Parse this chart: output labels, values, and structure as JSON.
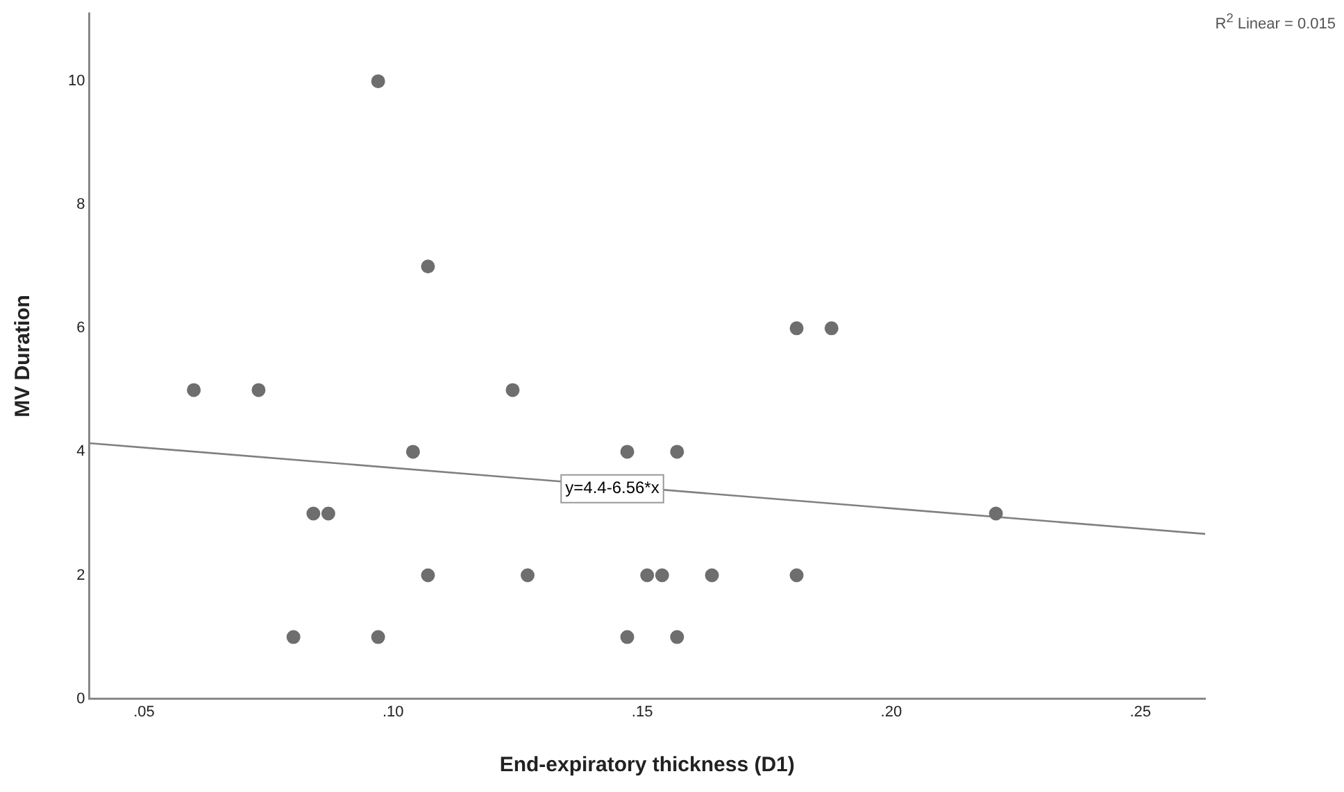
{
  "chart_data": {
    "type": "scatter",
    "xlabel": "End-expiratory thickness (D1)",
    "ylabel": "MV Duration",
    "x": [
      0.06,
      0.073,
      0.08,
      0.084,
      0.087,
      0.097,
      0.097,
      0.104,
      0.107,
      0.107,
      0.124,
      0.127,
      0.147,
      0.147,
      0.151,
      0.154,
      0.157,
      0.157,
      0.164,
      0.181,
      0.181,
      0.188,
      0.221
    ],
    "series": [
      {
        "color": "#6e6e6e",
        "marker": "circle",
        "values": [
          5,
          5,
          1,
          3,
          3,
          10,
          1,
          4,
          7,
          2,
          5,
          2,
          4,
          1,
          2,
          2,
          4,
          1,
          2,
          6,
          2,
          6,
          3
        ]
      },
      {
        "type": "line",
        "color": "#808080",
        "x": [
          0.039,
          0.263
        ],
        "values": [
          4.14,
          2.67
        ],
        "marker": "none"
      }
    ],
    "xlim": [
      0.039,
      0.263
    ],
    "ylim": [
      0,
      11.1
    ],
    "xticks": [
      {
        "value": 0.05,
        "label": ".05"
      },
      {
        "value": 0.1,
        "label": ".10"
      },
      {
        "value": 0.15,
        "label": ".15"
      },
      {
        "value": 0.2,
        "label": ".20"
      },
      {
        "value": 0.25,
        "label": ".25"
      }
    ],
    "yticks": [
      0,
      2,
      4,
      6,
      8,
      10
    ],
    "annotations": [
      {
        "text": "y=4.4-6.56*x",
        "x": 0.144,
        "y": 3.4
      },
      "R$^{2}$ Linear = 0.015"
    ],
    "grid": false,
    "legend": false
  }
}
